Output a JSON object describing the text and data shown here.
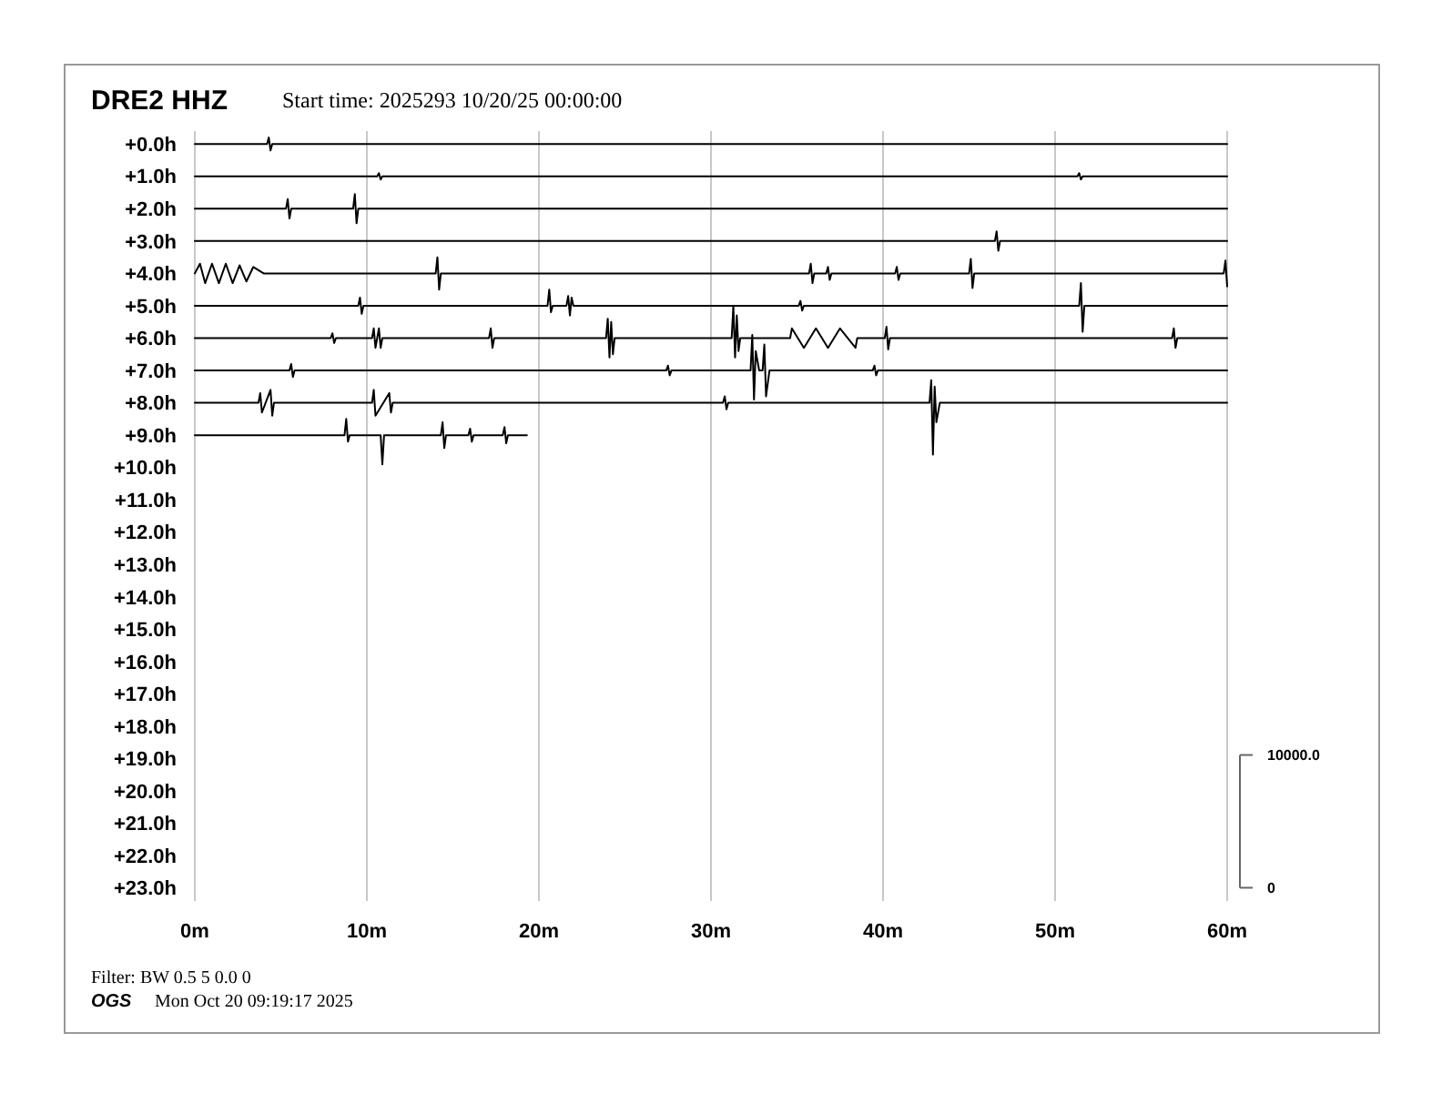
{
  "chart_data": {
    "type": "line",
    "title": "DRE2 HHZ",
    "subtitle": "Start time: 2025293 10/20/25 00:00:00",
    "annotations": [
      "Filter: BW 0.5 5 0.0 0",
      "OGS",
      "Mon Oct 20 09:19:17 2025"
    ],
    "xlim": [
      0,
      60
    ],
    "xticks": [
      {
        "value": 0,
        "label": "0m"
      },
      {
        "value": 10,
        "label": "10m"
      },
      {
        "value": 20,
        "label": "20m"
      },
      {
        "value": 30,
        "label": "30m"
      },
      {
        "value": 40,
        "label": "40m"
      },
      {
        "value": 50,
        "label": "50m"
      },
      {
        "value": 60,
        "label": "60m"
      }
    ],
    "ylim": [
      -23.4,
      0.4
    ],
    "yticks": [
      {
        "value": 0,
        "label": "+0.0h"
      },
      {
        "value": -1,
        "label": "+1.0h"
      },
      {
        "value": -2,
        "label": "+2.0h"
      },
      {
        "value": -3,
        "label": "+3.0h"
      },
      {
        "value": -4,
        "label": "+4.0h"
      },
      {
        "value": -5,
        "label": "+5.0h"
      },
      {
        "value": -6,
        "label": "+6.0h"
      },
      {
        "value": -7,
        "label": "+7.0h"
      },
      {
        "value": -8,
        "label": "+8.0h"
      },
      {
        "value": -9,
        "label": "+9.0h"
      },
      {
        "value": -10,
        "label": "+10.0h"
      },
      {
        "value": -11,
        "label": "+11.0h"
      },
      {
        "value": -12,
        "label": "+12.0h"
      },
      {
        "value": -13,
        "label": "+13.0h"
      },
      {
        "value": -14,
        "label": "+14.0h"
      },
      {
        "value": -15,
        "label": "+15.0h"
      },
      {
        "value": -16,
        "label": "+16.0h"
      },
      {
        "value": -17,
        "label": "+17.0h"
      },
      {
        "value": -18,
        "label": "+18.0h"
      },
      {
        "value": -19,
        "label": "+19.0h"
      },
      {
        "value": -20,
        "label": "+20.0h"
      },
      {
        "value": -21,
        "label": "+21.0h"
      },
      {
        "value": -22,
        "label": "+22.0h"
      },
      {
        "value": -23,
        "label": "+23.0h"
      }
    ],
    "y2lim": [
      -1000,
      57000
    ],
    "y2ticks": [
      0,
      {
        "value": 10000,
        "label": "10000.0"
      }
    ],
    "grid": "x",
    "marker": "none",
    "line_style": "solid",
    "series": [
      {
        "color": "#000000",
        "x": [
          0,
          4.2,
          4.3,
          4.4,
          4.5,
          60
        ],
        "values": [
          0,
          0,
          0.2,
          -0.2,
          0,
          0
        ]
      },
      {
        "color": "#000000",
        "x": [
          0,
          10.6,
          10.7,
          10.8,
          10.9,
          51.3,
          51.4,
          51.5,
          51.6,
          60
        ],
        "values": [
          -1,
          -1,
          -0.9,
          -1.1,
          -1,
          -1,
          -0.9,
          -1.1,
          -1,
          -1
        ]
      },
      {
        "color": "#000000",
        "x": [
          0,
          5.3,
          5.4,
          5.5,
          5.6,
          9.2,
          9.3,
          9.4,
          9.5,
          60
        ],
        "values": [
          -2,
          -2,
          -1.7,
          -2.3,
          -2,
          -2,
          -1.55,
          -2.45,
          -2,
          -2
        ]
      },
      {
        "color": "#000000",
        "x": [
          0,
          46.5,
          46.6,
          46.7,
          46.8,
          60
        ],
        "values": [
          -3,
          -3,
          -2.7,
          -3.3,
          -3,
          -3
        ]
      },
      {
        "color": "#000000",
        "x": [
          0,
          0.3,
          0.6,
          1.0,
          1.4,
          1.8,
          2.2,
          2.6,
          3.0,
          3.4,
          4.0,
          14.0,
          14.1,
          14.2,
          14.3,
          35.7,
          35.8,
          35.9,
          36.0,
          36.7,
          36.8,
          36.9,
          37.0,
          40.7,
          40.8,
          40.9,
          41.0,
          45.0,
          45.1,
          45.2,
          45.3,
          59.8,
          59.9,
          60
        ],
        "values": [
          -4,
          -3.7,
          -4.3,
          -3.7,
          -4.3,
          -3.7,
          -4.3,
          -3.75,
          -4.25,
          -3.8,
          -4,
          -4,
          -3.5,
          -4.5,
          -4,
          -4,
          -3.7,
          -4.3,
          -4,
          -4,
          -3.8,
          -4.2,
          -4,
          -4,
          -3.8,
          -4.2,
          -4,
          -4,
          -3.55,
          -4.45,
          -4,
          -4,
          -3.6,
          -4.4
        ]
      },
      {
        "color": "#000000",
        "x": [
          0,
          9.5,
          9.6,
          9.7,
          9.8,
          20.5,
          20.6,
          20.7,
          20.8,
          21.6,
          21.7,
          21.8,
          21.9,
          22.0,
          35.1,
          35.2,
          35.3,
          35.4,
          51.4,
          51.5,
          51.6,
          51.7,
          60
        ],
        "values": [
          -5,
          -5,
          -4.75,
          -5.25,
          -5,
          -5,
          -4.5,
          -5.2,
          -5,
          -5,
          -4.7,
          -5.3,
          -4.75,
          -5,
          -5,
          -4.85,
          -5.15,
          -5,
          -5,
          -4.3,
          -5.8,
          -5,
          -5
        ]
      },
      {
        "color": "#000000",
        "x": [
          0,
          7.9,
          8.0,
          8.1,
          8.2,
          10.3,
          10.4,
          10.5,
          10.6,
          10.7,
          10.8,
          10.9,
          17.1,
          17.2,
          17.3,
          17.4,
          23.9,
          24.0,
          24.1,
          24.2,
          24.3,
          24.4,
          31.2,
          31.3,
          31.4,
          31.5,
          31.6,
          31.7,
          34.6,
          34.7,
          35.4,
          36.1,
          36.8,
          37.5,
          38.4,
          38.5,
          40.1,
          40.2,
          40.3,
          40.4,
          56.8,
          56.9,
          57.0,
          57.1,
          60
        ],
        "values": [
          -6,
          -6,
          -5.85,
          -6.15,
          -6,
          -6,
          -5.7,
          -6.3,
          -6,
          -5.7,
          -6.3,
          -6,
          -6,
          -5.7,
          -6.3,
          -6,
          -6,
          -5.4,
          -6.6,
          -5.5,
          -6.5,
          -6,
          -6,
          -5.0,
          -6.6,
          -5.3,
          -6.4,
          -6,
          -6,
          -5.7,
          -6.3,
          -5.7,
          -6.3,
          -5.7,
          -6.3,
          -6,
          -6,
          -5.65,
          -6.35,
          -6,
          -6,
          -5.7,
          -6.3,
          -6,
          -6
        ]
      },
      {
        "color": "#000000",
        "x": [
          0,
          5.5,
          5.6,
          5.7,
          5.8,
          27.4,
          27.5,
          27.6,
          27.7,
          32.3,
          32.4,
          32.5,
          32.6,
          32.8,
          33.0,
          33.1,
          33.2,
          33.4,
          39.4,
          39.5,
          39.6,
          39.7,
          60
        ],
        "values": [
          -7,
          -7,
          -6.8,
          -7.2,
          -7,
          -7,
          -6.85,
          -7.15,
          -7,
          -7,
          -5.9,
          -7.9,
          -6.4,
          -7,
          -7,
          -6.2,
          -7.8,
          -7,
          -7,
          -6.85,
          -7.15,
          -7,
          -7
        ]
      },
      {
        "color": "#000000",
        "x": [
          0,
          3.7,
          3.8,
          3.9,
          4.4,
          4.5,
          4.6,
          10.3,
          10.4,
          10.5,
          11.3,
          11.4,
          11.5,
          30.7,
          30.8,
          30.9,
          31.0,
          42.7,
          42.8,
          42.9,
          43.0,
          43.1,
          43.3,
          60
        ],
        "values": [
          -8,
          -8,
          -7.7,
          -8.3,
          -7.6,
          -8.4,
          -8,
          -8,
          -7.6,
          -8.4,
          -7.7,
          -8.3,
          -8,
          -8,
          -7.8,
          -8.2,
          -8,
          -8,
          -7.3,
          -9.6,
          -7.5,
          -8.6,
          -8,
          -8
        ]
      },
      {
        "color": "#000000",
        "x": [
          0,
          8.7,
          8.8,
          8.9,
          9.0,
          10.8,
          10.9,
          11.0,
          14.3,
          14.4,
          14.5,
          14.6,
          15.9,
          16.0,
          16.1,
          16.2,
          17.9,
          18.0,
          18.1,
          18.2,
          19.3
        ],
        "values": [
          -9,
          -9,
          -8.5,
          -9.2,
          -9,
          -9,
          -9.9,
          -9,
          -9,
          -8.6,
          -9.4,
          -9,
          -9,
          -8.8,
          -9.2,
          -9,
          -9,
          -8.75,
          -9.25,
          -9,
          -9
        ]
      }
    ]
  }
}
